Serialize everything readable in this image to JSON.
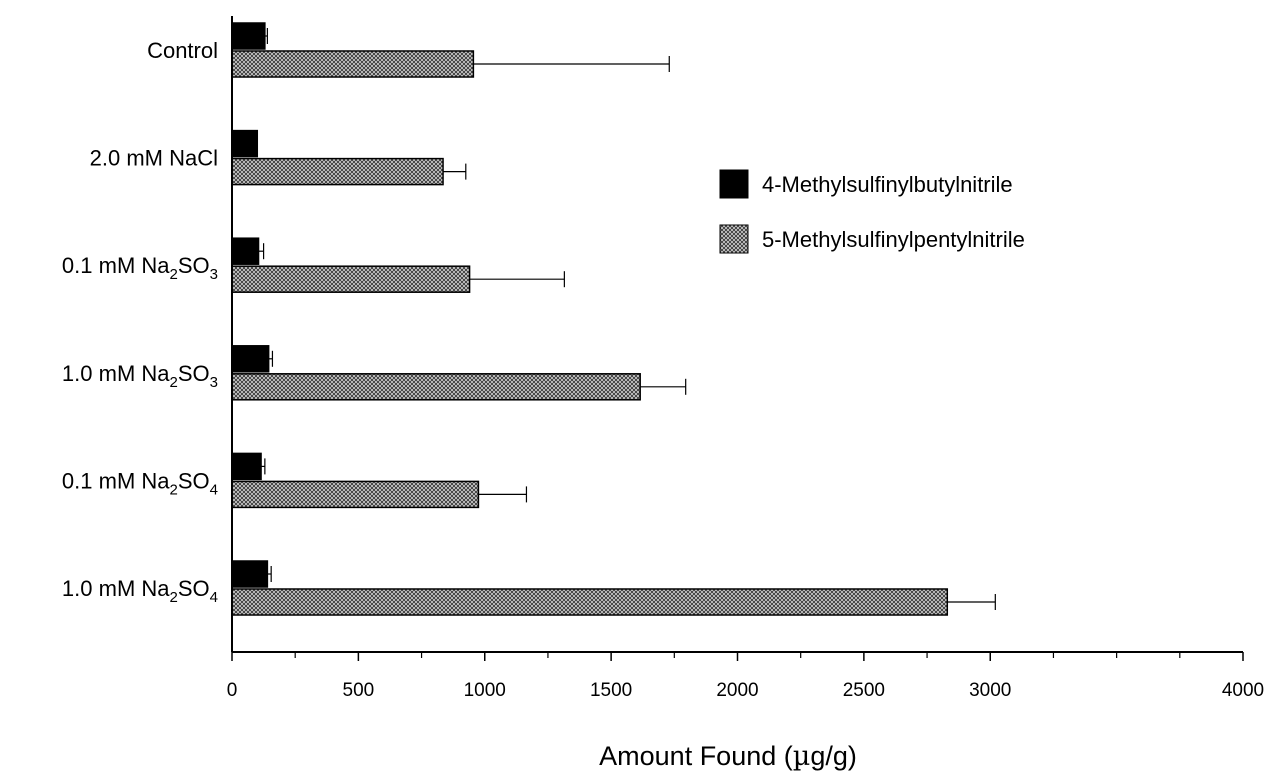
{
  "chart_data": {
    "type": "bar",
    "orientation": "horizontal",
    "categories": [
      {
        "base": "Control",
        "sub": "",
        "tail": "",
        "sub2": ""
      },
      {
        "base": "2.0 mM NaCl",
        "sub": "",
        "tail": "",
        "sub2": ""
      },
      {
        "base": "0.1 mM Na",
        "sub": "2",
        "tail": "SO",
        "sub2": "3"
      },
      {
        "base": "1.0 mM Na",
        "sub": "2",
        "tail": "SO",
        "sub2": "3"
      },
      {
        "base": "0.1 mM Na",
        "sub": "2",
        "tail": "SO",
        "sub2": "4"
      },
      {
        "base": "1.0 mM Na",
        "sub": "2",
        "tail": "SO",
        "sub2": "4"
      }
    ],
    "series": [
      {
        "name": "4-Methylsulfinylbutylnitrile",
        "values": [
          130,
          100,
          105,
          145,
          115,
          140
        ],
        "errors": [
          10,
          0,
          20,
          15,
          15,
          15
        ],
        "fill": "solid",
        "color": "#000000"
      },
      {
        "name": "5-Methylsulfinylpentylnitrile",
        "values": [
          955,
          835,
          940,
          1615,
          975,
          2830
        ],
        "errors": [
          775,
          90,
          375,
          180,
          190,
          190
        ],
        "fill": "crosshatch",
        "color": "#9a9a9a"
      }
    ],
    "xlabel": {
      "pre": "Amount Found (",
      "greek": "µ",
      "post": "g/g)"
    },
    "ylabel": "",
    "xlim": [
      0,
      4000
    ],
    "xticks_major": [
      0,
      500,
      1000,
      1500,
      2000,
      2500,
      3000,
      4000
    ],
    "xticks_minor": [
      250,
      750,
      1250,
      1750,
      2250,
      2750,
      3250,
      3500,
      3750
    ],
    "grid": false,
    "legend_position": "right-middle"
  }
}
